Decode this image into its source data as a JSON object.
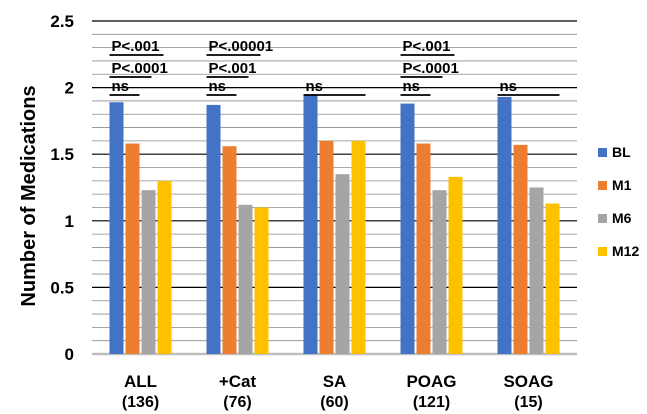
{
  "chart_data": {
    "type": "bar",
    "title": "",
    "xlabel": "",
    "ylabel": "Number of Medications",
    "ylim": [
      0,
      2.5
    ],
    "yticks": [
      "0",
      "0.5",
      "1",
      "1.5",
      "2",
      "2.5"
    ],
    "grid": true,
    "legend_position": "right",
    "categories": [
      {
        "label": "ALL",
        "sub": "(136)"
      },
      {
        "label": "+Cat",
        "sub": "(76)"
      },
      {
        "label": "SA",
        "sub": "(60)"
      },
      {
        "label": "POAG",
        "sub": "(121)"
      },
      {
        "label": "SOAG",
        "sub": "(15)"
      }
    ],
    "series": [
      {
        "name": "BL",
        "color": "#4472C4",
        "values": [
          1.89,
          1.87,
          1.95,
          1.88,
          1.93
        ]
      },
      {
        "name": "M1",
        "color": "#ED7D31",
        "values": [
          1.58,
          1.56,
          1.6,
          1.58,
          1.57
        ]
      },
      {
        "name": "M6",
        "color": "#A5A5A5",
        "values": [
          1.23,
          1.12,
          1.35,
          1.23,
          1.25
        ]
      },
      {
        "name": "M12",
        "color": "#FFC000",
        "values": [
          1.3,
          1.1,
          1.6,
          1.33,
          1.13
        ]
      }
    ],
    "annotations": [
      {
        "category": 0,
        "texts": [
          "P<.001",
          "P<.0001",
          "ns"
        ]
      },
      {
        "category": 1,
        "texts": [
          "P<.00001",
          "P<.001",
          "ns"
        ]
      },
      {
        "category": 2,
        "texts": [
          "ns"
        ]
      },
      {
        "category": 3,
        "texts": [
          "P<.001",
          "P<.0001",
          "ns"
        ]
      },
      {
        "category": 4,
        "texts": [
          "ns"
        ]
      }
    ]
  }
}
